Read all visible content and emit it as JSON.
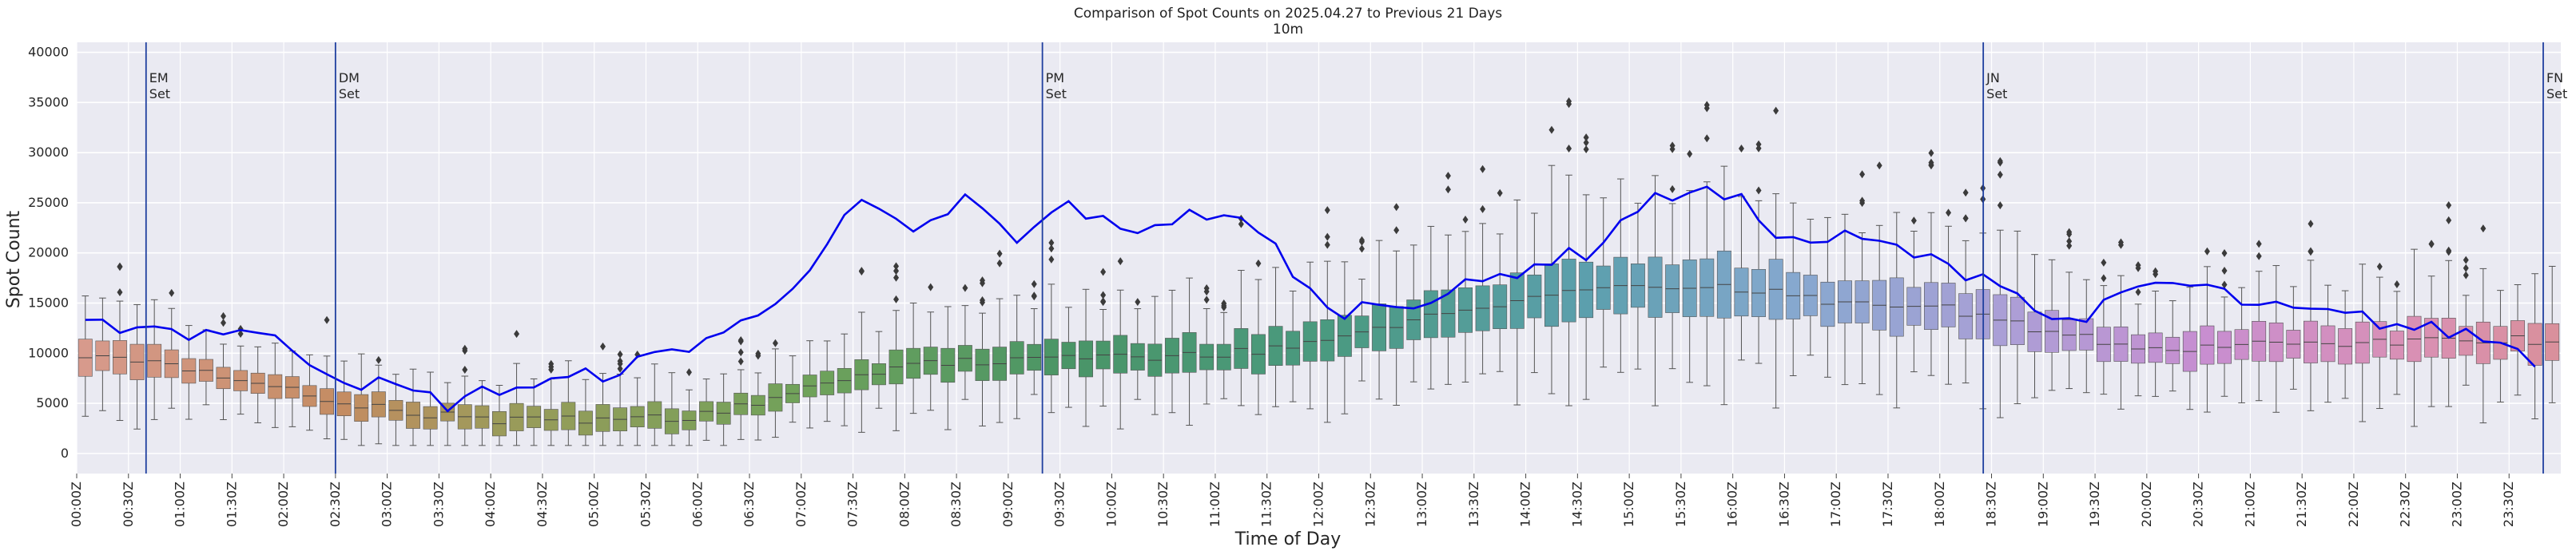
{
  "chart_data": {
    "type": "box",
    "title": "Comparison of Spot Counts on 2025.04.27 to Previous 21 Days",
    "subtitle": "10m",
    "xlabel": "Time of Day",
    "ylabel": "Spot Count",
    "ylim": [
      -2000,
      41000
    ],
    "yticks": [
      0,
      5000,
      10000,
      15000,
      20000,
      25000,
      30000,
      35000,
      40000
    ],
    "interval_minutes": 10,
    "n_bins": 144,
    "x_tick_labels": [
      "00:00Z",
      "00:30Z",
      "01:00Z",
      "01:30Z",
      "02:00Z",
      "02:30Z",
      "03:00Z",
      "03:30Z",
      "04:00Z",
      "04:30Z",
      "05:00Z",
      "05:30Z",
      "06:00Z",
      "06:30Z",
      "07:00Z",
      "07:30Z",
      "08:00Z",
      "08:30Z",
      "09:00Z",
      "09:30Z",
      "10:00Z",
      "10:30Z",
      "11:00Z",
      "11:30Z",
      "12:00Z",
      "12:30Z",
      "13:00Z",
      "13:30Z",
      "14:00Z",
      "14:30Z",
      "15:00Z",
      "15:30Z",
      "16:00Z",
      "16:30Z",
      "17:00Z",
      "17:30Z",
      "18:00Z",
      "18:30Z",
      "19:00Z",
      "19:30Z",
      "20:00Z",
      "20:30Z",
      "21:00Z",
      "21:30Z",
      "22:00Z",
      "22:30Z",
      "23:00Z",
      "23:30Z"
    ],
    "grid": true,
    "background": "#eaeaf2",
    "line_color": "#0000ee",
    "marker_color": "#1f3f9f",
    "median_key_times": [
      0,
      1,
      2,
      3,
      4,
      5,
      6,
      7,
      8,
      9,
      10,
      11,
      12,
      13,
      14,
      15,
      16,
      17,
      18,
      19,
      20,
      21,
      22,
      23,
      24
    ],
    "median_key_values": [
      10000,
      8300,
      6200,
      4200,
      3300,
      3300,
      3800,
      6500,
      8800,
      9500,
      9500,
      10000,
      11000,
      13500,
      15500,
      16800,
      16500,
      15000,
      14500,
      12000,
      10500,
      10800,
      11000,
      11500,
      11200
    ],
    "current_day_key_times": [
      0,
      0.5,
      1,
      1.5,
      2,
      2.5,
      3,
      3.5,
      4,
      4.5,
      5,
      5.5,
      6,
      6.5,
      7,
      7.5,
      8,
      8.5,
      9,
      9.5,
      10,
      10.5,
      11,
      11.5,
      12,
      12.5,
      13,
      13.5,
      14,
      14.5,
      15,
      15.5,
      16,
      16.5,
      17,
      17.5,
      18,
      18.5,
      19,
      19.5,
      20,
      20.5,
      21,
      21.5,
      22,
      22.5,
      23,
      23.5,
      23.83
    ],
    "current_day_key_values": [
      12500,
      13000,
      12000,
      12500,
      10500,
      7500,
      6500,
      5000,
      6500,
      7000,
      8000,
      9500,
      11500,
      13500,
      19000,
      25000,
      21500,
      25500,
      21000,
      25000,
      22000,
      23500,
      24000,
      20500,
      14000,
      15000,
      15500,
      17000,
      19000,
      20000,
      24500,
      26500,
      25000,
      21000,
      21500,
      20500,
      18500,
      17500,
      13000,
      14500,
      17000,
      16500,
      14500,
      14000,
      13500,
      12500,
      12000,
      10500,
      8500
    ],
    "markers": [
      {
        "label": [
          "EM",
          "Set"
        ],
        "time": 0.67
      },
      {
        "label": [
          "DM",
          "Set"
        ],
        "time": 2.5
      },
      {
        "label": [
          "PM",
          "Set"
        ],
        "time": 9.33
      },
      {
        "label": [
          "JN",
          "Set"
        ],
        "time": 18.42
      },
      {
        "label": [
          "FN",
          "Set"
        ],
        "time": 23.83
      }
    ],
    "hue_stops": [
      {
        "time": 0,
        "color": "#d79a8c"
      },
      {
        "time": 2.5,
        "color": "#c48c62"
      },
      {
        "time": 4,
        "color": "#9b9b5a"
      },
      {
        "time": 7,
        "color": "#6fa25a"
      },
      {
        "time": 9.5,
        "color": "#4a9567"
      },
      {
        "time": 12,
        "color": "#4a9a80"
      },
      {
        "time": 14.5,
        "color": "#5c9fad"
      },
      {
        "time": 16.5,
        "color": "#86a8cf"
      },
      {
        "time": 18.5,
        "color": "#aa9fd6"
      },
      {
        "time": 20.5,
        "color": "#c88ed0"
      },
      {
        "time": 22.5,
        "color": "#d990b4"
      },
      {
        "time": 24,
        "color": "#d99099"
      }
    ]
  }
}
